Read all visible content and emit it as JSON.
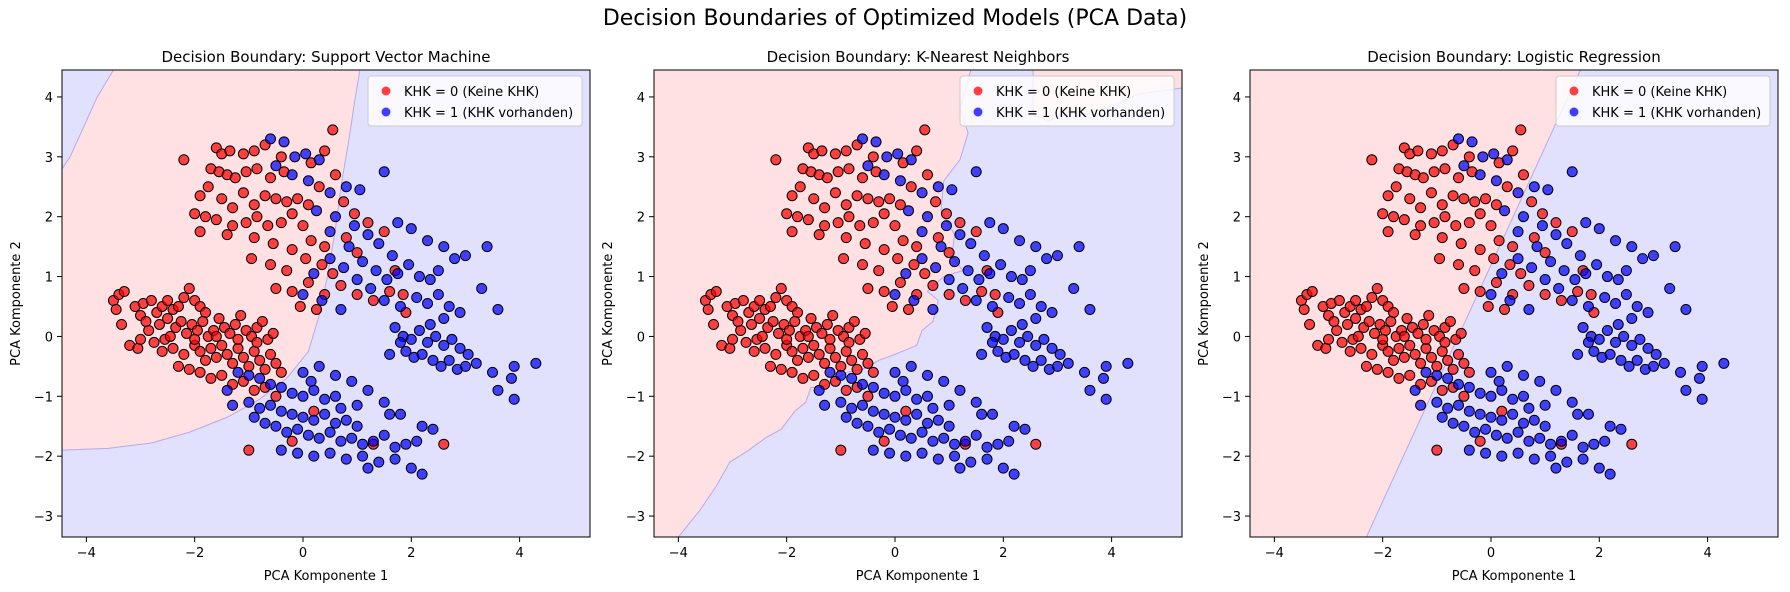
{
  "figure": {
    "suptitle": "Decision Boundaries of Optimized Models (PCA Data)"
  },
  "colors": {
    "class0": "#ff0000",
    "class1": "#0000ff",
    "region0": "#ffe0e3",
    "region1": "#e1e1fd",
    "boundary": "#b9a9e6"
  },
  "chart_data": [
    {
      "type": "scatter",
      "title": "Decision Boundary: Support Vector Machine",
      "xlabel": "PCA Komponente 1",
      "ylabel": "PCA Komponente 2",
      "xlim": [
        -4.45,
        5.3
      ],
      "ylim": [
        -3.35,
        4.45
      ],
      "xticks": [
        -4,
        -2,
        0,
        2,
        4
      ],
      "yticks": [
        -3,
        -2,
        -1,
        0,
        1,
        2,
        3,
        4
      ],
      "grid": false,
      "legend": "top-right",
      "series": [
        {
          "name": "KHK = 0 (Keine KHK)",
          "color": "#ff0000"
        },
        {
          "name": "KHK = 1 (KHK vorhanden)",
          "color": "#0000ff"
        }
      ],
      "boundary": {
        "shape": "curved",
        "class0_side": "left",
        "points": [
          [
            -4.45,
            -1.9
          ],
          [
            -3.6,
            -1.87
          ],
          [
            -2.8,
            -1.78
          ],
          [
            -2.1,
            -1.6
          ],
          [
            -1.4,
            -1.35
          ],
          [
            -0.8,
            -1.05
          ],
          [
            -0.3,
            -0.7
          ],
          [
            0.1,
            -0.25
          ],
          [
            0.3,
            0.35
          ],
          [
            0.45,
            1.0
          ],
          [
            0.6,
            1.8
          ],
          [
            0.72,
            2.6
          ],
          [
            0.85,
            3.3
          ],
          [
            0.95,
            3.9
          ],
          [
            1.05,
            4.45
          ]
        ],
        "points_top": [
          [
            -3.5,
            4.45
          ],
          [
            -3.8,
            4.0
          ],
          [
            -4.05,
            3.5
          ],
          [
            -4.3,
            3.0
          ],
          [
            -4.45,
            2.8
          ]
        ]
      }
    },
    {
      "type": "scatter",
      "title": "Decision Boundary: K-Nearest Neighbors",
      "xlabel": "PCA Komponente 1",
      "ylabel": "PCA Komponente 2",
      "xlim": [
        -4.45,
        5.3
      ],
      "ylim": [
        -3.35,
        4.45
      ],
      "xticks": [
        -4,
        -2,
        0,
        2,
        4
      ],
      "yticks": [
        -3,
        -2,
        -1,
        0,
        1,
        2,
        3,
        4
      ],
      "grid": false,
      "legend": "top-right",
      "series": [
        {
          "name": "KHK = 0 (Keine KHK)",
          "color": "#ff0000"
        },
        {
          "name": "KHK = 1 (KHK vorhanden)",
          "color": "#0000ff"
        }
      ],
      "boundary": {
        "shape": "jagged",
        "class0_side": "left",
        "points": [
          [
            -4.0,
            -3.35
          ],
          [
            -3.6,
            -2.9
          ],
          [
            -3.3,
            -2.5
          ],
          [
            -3.05,
            -2.1
          ],
          [
            -2.7,
            -1.9
          ],
          [
            -2.4,
            -1.7
          ],
          [
            -2.1,
            -1.55
          ],
          [
            -1.85,
            -1.25
          ],
          [
            -1.65,
            -1.1
          ],
          [
            -1.55,
            -0.85
          ],
          [
            -1.35,
            -0.85
          ],
          [
            -1.15,
            -0.75
          ],
          [
            -0.9,
            -0.6
          ],
          [
            -0.6,
            -0.55
          ],
          [
            -0.3,
            -0.4
          ],
          [
            0.0,
            -0.3
          ],
          [
            0.4,
            -0.15
          ],
          [
            0.5,
            0.1
          ],
          [
            0.7,
            0.25
          ],
          [
            0.8,
            0.6
          ],
          [
            0.6,
            0.75
          ],
          [
            0.9,
            1.0
          ],
          [
            1.25,
            1.1
          ],
          [
            1.05,
            1.35
          ],
          [
            1.1,
            1.7
          ],
          [
            0.85,
            2.1
          ],
          [
            0.9,
            2.6
          ],
          [
            1.2,
            2.95
          ],
          [
            1.35,
            3.4
          ],
          [
            1.2,
            3.8
          ],
          [
            1.4,
            4.45
          ]
        ],
        "points_top": [
          [
            2.55,
            4.45
          ],
          [
            2.55,
            3.7
          ],
          [
            2.85,
            3.6
          ],
          [
            3.15,
            3.75
          ],
          [
            3.5,
            3.7
          ],
          [
            4.0,
            3.85
          ],
          [
            4.5,
            4.05
          ],
          [
            5.3,
            4.15
          ]
        ]
      }
    },
    {
      "type": "scatter",
      "title": "Decision Boundary: Logistic Regression",
      "xlabel": "PCA Komponente 1",
      "ylabel": "PCA Komponente 2",
      "xlim": [
        -4.45,
        5.3
      ],
      "ylim": [
        -3.35,
        4.45
      ],
      "xticks": [
        -4,
        -2,
        0,
        2,
        4
      ],
      "yticks": [
        -3,
        -2,
        -1,
        0,
        1,
        2,
        3,
        4
      ],
      "grid": false,
      "legend": "top-right",
      "series": [
        {
          "name": "KHK = 0 (Keine KHK)",
          "color": "#ff0000"
        },
        {
          "name": "KHK = 1 (KHK vorhanden)",
          "color": "#0000ff"
        }
      ],
      "boundary": {
        "shape": "linear",
        "class0_side": "left",
        "points": [
          [
            -2.3,
            -3.35
          ],
          [
            1.65,
            4.45
          ]
        ]
      }
    }
  ],
  "scatter_points": {
    "class0": [
      [
        -3.5,
        0.6
      ],
      [
        -3.4,
        0.7
      ],
      [
        -3.3,
        0.75
      ],
      [
        -3.45,
        0.45
      ],
      [
        -3.1,
        0.5
      ],
      [
        -3.0,
        0.35
      ],
      [
        -2.95,
        0.55
      ],
      [
        -2.8,
        0.6
      ],
      [
        -2.85,
        0.1
      ],
      [
        -2.7,
        0.4
      ],
      [
        -2.6,
        0.5
      ],
      [
        -2.5,
        0.6
      ],
      [
        -2.4,
        0.45
      ],
      [
        -2.3,
        0.5
      ],
      [
        -2.2,
        0.65
      ],
      [
        -2.1,
        0.8
      ],
      [
        -2.0,
        0.6
      ],
      [
        -1.9,
        0.5
      ],
      [
        -1.8,
        0.4
      ],
      [
        -3.35,
        0.2
      ],
      [
        -3.2,
        -0.15
      ],
      [
        -3.05,
        -0.2
      ],
      [
        -2.75,
        -0.1
      ],
      [
        -2.65,
        0.2
      ],
      [
        -2.55,
        -0.05
      ],
      [
        -2.45,
        0.0
      ],
      [
        -2.35,
        0.15
      ],
      [
        -2.25,
        0.25
      ],
      [
        -2.15,
        0.05
      ],
      [
        -2.05,
        0.2
      ],
      [
        -1.95,
        0.1
      ],
      [
        -1.85,
        0.25
      ],
      [
        -1.75,
        0.0
      ],
      [
        -1.65,
        0.1
      ],
      [
        -1.55,
        0.3
      ],
      [
        -1.45,
        0.15
      ],
      [
        -1.35,
        0.05
      ],
      [
        -1.25,
        0.2
      ],
      [
        -1.15,
        0.35
      ],
      [
        -1.05,
        0.1
      ],
      [
        -0.95,
        0.0
      ],
      [
        -0.85,
        0.15
      ],
      [
        -0.75,
        0.25
      ],
      [
        -0.65,
        -0.05
      ],
      [
        -0.55,
        0.05
      ],
      [
        -2.6,
        -0.25
      ],
      [
        -2.4,
        -0.2
      ],
      [
        -2.2,
        -0.3
      ],
      [
        -2.0,
        -0.15
      ],
      [
        -1.9,
        -0.25
      ],
      [
        -1.8,
        -0.4
      ],
      [
        -1.7,
        -0.2
      ],
      [
        -1.6,
        -0.35
      ],
      [
        -1.5,
        -0.15
      ],
      [
        -1.4,
        -0.3
      ],
      [
        -1.3,
        -0.45
      ],
      [
        -1.2,
        -0.2
      ],
      [
        -1.1,
        -0.35
      ],
      [
        -1.0,
        -0.5
      ],
      [
        -0.9,
        -0.25
      ],
      [
        -0.8,
        -0.4
      ],
      [
        -0.7,
        -0.55
      ],
      [
        -0.6,
        -0.3
      ],
      [
        -0.5,
        -0.45
      ],
      [
        -0.4,
        -0.6
      ],
      [
        -2.3,
        -0.5
      ],
      [
        -2.1,
        -0.55
      ],
      [
        -1.9,
        -0.6
      ],
      [
        -1.7,
        -0.7
      ],
      [
        -1.5,
        -0.65
      ],
      [
        -1.3,
        -0.8
      ],
      [
        -1.1,
        -0.75
      ],
      [
        -0.9,
        -0.9
      ],
      [
        -0.7,
        -0.85
      ],
      [
        -0.5,
        -1.0
      ],
      [
        -2.0,
        -0.05
      ],
      [
        -1.6,
        0.0
      ],
      [
        -1.2,
        -0.05
      ],
      [
        -0.85,
        -0.1
      ],
      [
        -2.5,
        0.3
      ],
      [
        -3.0,
        -0.05
      ],
      [
        -2.9,
        0.25
      ],
      [
        -1.6,
        3.15
      ],
      [
        -1.5,
        3.05
      ],
      [
        -1.35,
        3.1
      ],
      [
        -1.1,
        3.05
      ],
      [
        -0.9,
        3.1
      ],
      [
        -0.7,
        3.2
      ],
      [
        -0.4,
        3.0
      ],
      [
        -1.7,
        2.8
      ],
      [
        -1.55,
        2.75
      ],
      [
        -1.4,
        2.7
      ],
      [
        -1.25,
        2.65
      ],
      [
        -1.05,
        2.75
      ],
      [
        -0.85,
        2.8
      ],
      [
        -0.6,
        2.65
      ],
      [
        -0.35,
        2.75
      ],
      [
        -2.2,
        2.95
      ],
      [
        -1.9,
        2.35
      ],
      [
        -1.75,
        2.5
      ],
      [
        -1.5,
        2.3
      ],
      [
        -1.3,
        2.15
      ],
      [
        -1.1,
        2.4
      ],
      [
        -0.9,
        2.2
      ],
      [
        -0.7,
        2.35
      ],
      [
        -0.5,
        2.3
      ],
      [
        -0.3,
        2.25
      ],
      [
        -0.1,
        2.3
      ],
      [
        0.1,
        2.2
      ],
      [
        -2.0,
        2.05
      ],
      [
        -1.8,
        2.0
      ],
      [
        -1.6,
        1.95
      ],
      [
        -1.3,
        1.85
      ],
      [
        -1.05,
        1.9
      ],
      [
        -0.85,
        2.0
      ],
      [
        -0.65,
        1.85
      ],
      [
        -0.4,
        1.9
      ],
      [
        -0.2,
        2.05
      ],
      [
        0.0,
        1.85
      ],
      [
        -1.9,
        1.75
      ],
      [
        -1.4,
        1.7
      ],
      [
        -0.9,
        1.65
      ],
      [
        -0.55,
        1.55
      ],
      [
        -0.2,
        1.45
      ],
      [
        0.15,
        1.6
      ],
      [
        0.4,
        1.5
      ],
      [
        -0.95,
        1.3
      ],
      [
        -0.6,
        1.2
      ],
      [
        -0.3,
        1.1
      ],
      [
        0.05,
        1.3
      ],
      [
        0.35,
        1.2
      ],
      [
        0.55,
        1.05
      ],
      [
        -0.5,
        0.8
      ],
      [
        -0.2,
        0.75
      ],
      [
        0.1,
        0.9
      ],
      [
        0.4,
        0.7
      ],
      [
        0.7,
        0.85
      ],
      [
        1.0,
        0.7
      ],
      [
        1.3,
        0.6
      ],
      [
        1.6,
        0.75
      ],
      [
        1.9,
        0.4
      ],
      [
        0.55,
        3.45
      ],
      [
        0.4,
        3.1
      ],
      [
        0.15,
        2.9
      ],
      [
        0.3,
        2.5
      ],
      [
        0.6,
        2.7
      ],
      [
        0.75,
        2.25
      ],
      [
        0.95,
        2.05
      ],
      [
        1.2,
        1.9
      ],
      [
        0.8,
        1.65
      ],
      [
        1.0,
        1.4
      ],
      [
        1.5,
        1.75
      ],
      [
        1.7,
        1.1
      ],
      [
        1.85,
        0.7
      ],
      [
        -0.05,
        0.5
      ],
      [
        0.25,
        0.45
      ],
      [
        -1.0,
        -1.9
      ],
      [
        -0.2,
        -1.75
      ],
      [
        1.3,
        -1.8
      ],
      [
        2.6,
        -1.8
      ],
      [
        0.2,
        -1.25
      ]
    ],
    "class1": [
      [
        -0.6,
        3.3
      ],
      [
        -0.35,
        3.25
      ],
      [
        -0.15,
        3.0
      ],
      [
        0.05,
        3.05
      ],
      [
        0.3,
        2.95
      ],
      [
        -0.5,
        2.85
      ],
      [
        -0.2,
        2.7
      ],
      [
        0.1,
        2.6
      ],
      [
        0.5,
        2.4
      ],
      [
        0.8,
        2.5
      ],
      [
        1.05,
        2.45
      ],
      [
        0.25,
        2.1
      ],
      [
        0.6,
        2.0
      ],
      [
        0.95,
        1.85
      ],
      [
        1.2,
        1.7
      ],
      [
        1.4,
        1.55
      ],
      [
        1.65,
        1.35
      ],
      [
        0.5,
        1.75
      ],
      [
        0.85,
        1.5
      ],
      [
        1.1,
        1.25
      ],
      [
        1.35,
        1.1
      ],
      [
        1.55,
        0.95
      ],
      [
        1.75,
        1.05
      ],
      [
        1.95,
        1.2
      ],
      [
        2.15,
        1.0
      ],
      [
        2.35,
        0.95
      ],
      [
        2.5,
        1.1
      ],
      [
        2.1,
        0.65
      ],
      [
        2.3,
        0.55
      ],
      [
        2.5,
        0.7
      ],
      [
        2.7,
        0.5
      ],
      [
        2.9,
        0.4
      ],
      [
        2.6,
        0.3
      ],
      [
        1.5,
        2.75
      ],
      [
        1.75,
        1.9
      ],
      [
        2.0,
        1.8
      ],
      [
        2.3,
        1.6
      ],
      [
        2.6,
        1.5
      ],
      [
        2.8,
        1.3
      ],
      [
        3.0,
        1.35
      ],
      [
        3.4,
        1.5
      ],
      [
        3.3,
        0.8
      ],
      [
        3.6,
        0.45
      ],
      [
        0.2,
        1.05
      ],
      [
        0.5,
        1.3
      ],
      [
        0.75,
        1.15
      ],
      [
        1.0,
        0.95
      ],
      [
        1.25,
        0.8
      ],
      [
        1.5,
        0.6
      ],
      [
        1.8,
        0.5
      ],
      [
        0.0,
        0.7
      ],
      [
        0.35,
        0.6
      ],
      [
        0.7,
        0.45
      ],
      [
        1.7,
        0.15
      ],
      [
        1.85,
        0.0
      ],
      [
        2.0,
        -0.05
      ],
      [
        2.15,
        0.1
      ],
      [
        2.3,
        -0.1
      ],
      [
        2.45,
        0.0
      ],
      [
        2.6,
        -0.15
      ],
      [
        2.75,
        -0.05
      ],
      [
        2.9,
        -0.2
      ],
      [
        3.05,
        -0.3
      ],
      [
        1.9,
        -0.25
      ],
      [
        2.05,
        -0.35
      ],
      [
        2.2,
        -0.3
      ],
      [
        2.4,
        -0.4
      ],
      [
        2.55,
        -0.5
      ],
      [
        2.7,
        -0.4
      ],
      [
        2.85,
        -0.55
      ],
      [
        3.0,
        -0.5
      ],
      [
        3.2,
        -0.45
      ],
      [
        3.5,
        -0.6
      ],
      [
        3.9,
        -0.5
      ],
      [
        3.85,
        -0.7
      ],
      [
        4.3,
        -0.45
      ],
      [
        3.6,
        -0.9
      ],
      [
        3.9,
        -1.05
      ],
      [
        1.8,
        -0.1
      ],
      [
        2.35,
        0.2
      ],
      [
        1.6,
        -0.3
      ],
      [
        -1.2,
        -0.6
      ],
      [
        -1.0,
        -0.65
      ],
      [
        -0.8,
        -0.7
      ],
      [
        -0.6,
        -0.8
      ],
      [
        -0.4,
        -0.85
      ],
      [
        -0.2,
        -0.95
      ],
      [
        0.0,
        -1.0
      ],
      [
        0.2,
        -0.9
      ],
      [
        0.4,
        -1.05
      ],
      [
        0.6,
        -1.0
      ],
      [
        -1.0,
        -1.1
      ],
      [
        -0.8,
        -1.2
      ],
      [
        -0.6,
        -1.15
      ],
      [
        -0.4,
        -1.25
      ],
      [
        -0.2,
        -1.3
      ],
      [
        0.0,
        -1.35
      ],
      [
        0.2,
        -1.4
      ],
      [
        0.4,
        -1.3
      ],
      [
        0.6,
        -1.45
      ],
      [
        0.8,
        -1.4
      ],
      [
        1.0,
        -1.5
      ],
      [
        -0.7,
        -1.45
      ],
      [
        -0.5,
        -1.5
      ],
      [
        -0.3,
        -1.6
      ],
      [
        -0.1,
        -1.55
      ],
      [
        0.1,
        -1.65
      ],
      [
        0.3,
        -1.7
      ],
      [
        0.5,
        -1.6
      ],
      [
        0.7,
        -1.75
      ],
      [
        0.9,
        -1.7
      ],
      [
        1.1,
        -1.8
      ],
      [
        1.3,
        -1.75
      ],
      [
        1.5,
        -1.65
      ],
      [
        1.7,
        -1.85
      ],
      [
        1.9,
        -1.8
      ],
      [
        2.1,
        -1.75
      ],
      [
        -0.4,
        -1.9
      ],
      [
        -0.1,
        -1.95
      ],
      [
        0.2,
        -2.0
      ],
      [
        0.5,
        -1.95
      ],
      [
        0.8,
        -2.05
      ],
      [
        1.1,
        -2.0
      ],
      [
        1.4,
        -2.1
      ],
      [
        1.7,
        -2.05
      ],
      [
        2.0,
        -2.2
      ],
      [
        2.2,
        -2.3
      ],
      [
        1.2,
        -2.2
      ],
      [
        0.0,
        -0.6
      ],
      [
        0.3,
        -0.5
      ],
      [
        0.6,
        -0.65
      ],
      [
        0.9,
        -0.75
      ],
      [
        1.2,
        -0.9
      ],
      [
        1.5,
        -1.1
      ],
      [
        1.8,
        -1.3
      ],
      [
        2.2,
        -1.5
      ],
      [
        2.4,
        -1.55
      ],
      [
        1.0,
        -1.15
      ],
      [
        0.7,
        -1.2
      ],
      [
        -1.4,
        -0.9
      ],
      [
        -1.3,
        -1.15
      ],
      [
        -0.9,
        -1.35
      ],
      [
        1.6,
        -1.3
      ],
      [
        0.15,
        -0.75
      ]
    ]
  }
}
